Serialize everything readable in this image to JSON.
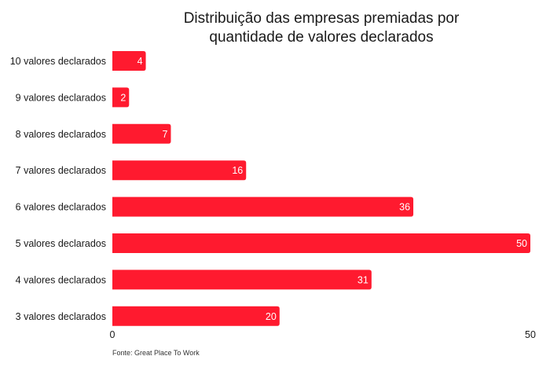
{
  "chart_data": {
    "type": "bar",
    "orientation": "horizontal",
    "title_lines": [
      "Distribuição das empresas premiadas por",
      "quantidade de valores declarados"
    ],
    "categories": [
      "10 valores declarados",
      "9 valores declarados",
      "8 valores declarados",
      "7 valores declarados",
      "6 valores declarados",
      "5 valores declarados",
      "4 valores declarados",
      "3 valores declarados"
    ],
    "values": [
      4,
      2,
      7,
      16,
      36,
      50,
      31,
      20
    ],
    "xlim": [
      0,
      50
    ],
    "xticks": [
      "0",
      "50"
    ],
    "source": "Fonte: Great Place To Work",
    "bar_color": "#ff1a2f",
    "grid": false,
    "legend": "none"
  }
}
